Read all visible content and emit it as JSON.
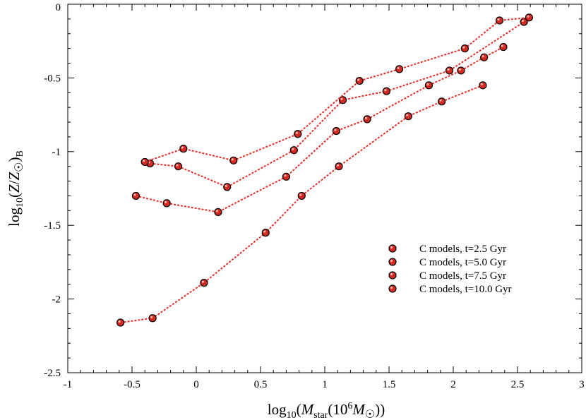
{
  "chart_data": {
    "type": "line",
    "xlim": [
      -1,
      3
    ],
    "ylim": [
      -2.5,
      0
    ],
    "xticks": [
      -1,
      -0.5,
      0,
      0.5,
      1,
      1.5,
      2,
      2.5,
      3
    ],
    "xtick_labels": [
      "-1",
      "-0.5",
      "0",
      "0.5",
      "1",
      "1.5",
      "2",
      "2.5",
      "3"
    ],
    "yticks": [
      -2.5,
      -2,
      -1.5,
      -1,
      -0.5,
      0
    ],
    "ytick_labels": [
      "-2.5",
      "-2",
      "-1.5",
      "-1",
      "-0.5",
      "0"
    ],
    "xlabel": "log10(Mstar(10^6 M☉))",
    "ylabel": "log10(Z/Z☉)B",
    "grid": false,
    "legend_position": "lower-right",
    "line_color": "#e8302b",
    "marker_color": "#d42a22",
    "series": [
      {
        "name": "C models, t=2.5 Gyr",
        "points": [
          [
            -0.59,
            -2.16
          ],
          [
            -0.34,
            -2.13
          ],
          [
            0.06,
            -1.89
          ],
          [
            0.54,
            -1.55
          ],
          [
            0.82,
            -1.3
          ],
          [
            1.11,
            -1.1
          ],
          [
            1.65,
            -0.76
          ],
          [
            1.91,
            -0.66
          ],
          [
            2.23,
            -0.55
          ]
        ]
      },
      {
        "name": "C models, t=5.0 Gyr",
        "points": [
          [
            -0.47,
            -1.3
          ],
          [
            -0.23,
            -1.35
          ],
          [
            0.17,
            -1.41
          ],
          [
            0.7,
            -1.17
          ],
          [
            1.09,
            -0.86
          ],
          [
            1.33,
            -0.78
          ],
          [
            1.81,
            -0.55
          ],
          [
            2.06,
            -0.45
          ],
          [
            2.24,
            -0.36
          ],
          [
            2.39,
            -0.29
          ]
        ]
      },
      {
        "name": "C models, t=7.5 Gyr",
        "points": [
          [
            -0.36,
            -1.08
          ],
          [
            -0.14,
            -1.1
          ],
          [
            0.24,
            -1.24
          ],
          [
            0.76,
            -0.99
          ],
          [
            1.14,
            -0.65
          ],
          [
            1.48,
            -0.59
          ],
          [
            1.97,
            -0.45
          ],
          [
            2.55,
            -0.12
          ]
        ]
      },
      {
        "name": "C models, t=10.0 Gyr",
        "points": [
          [
            -0.4,
            -1.07
          ],
          [
            -0.1,
            -0.98
          ],
          [
            0.29,
            -1.06
          ],
          [
            0.79,
            -0.88
          ],
          [
            1.27,
            -0.52
          ],
          [
            1.58,
            -0.44
          ],
          [
            2.09,
            -0.3
          ],
          [
            2.36,
            -0.11
          ],
          [
            2.59,
            -0.09
          ]
        ]
      }
    ]
  }
}
